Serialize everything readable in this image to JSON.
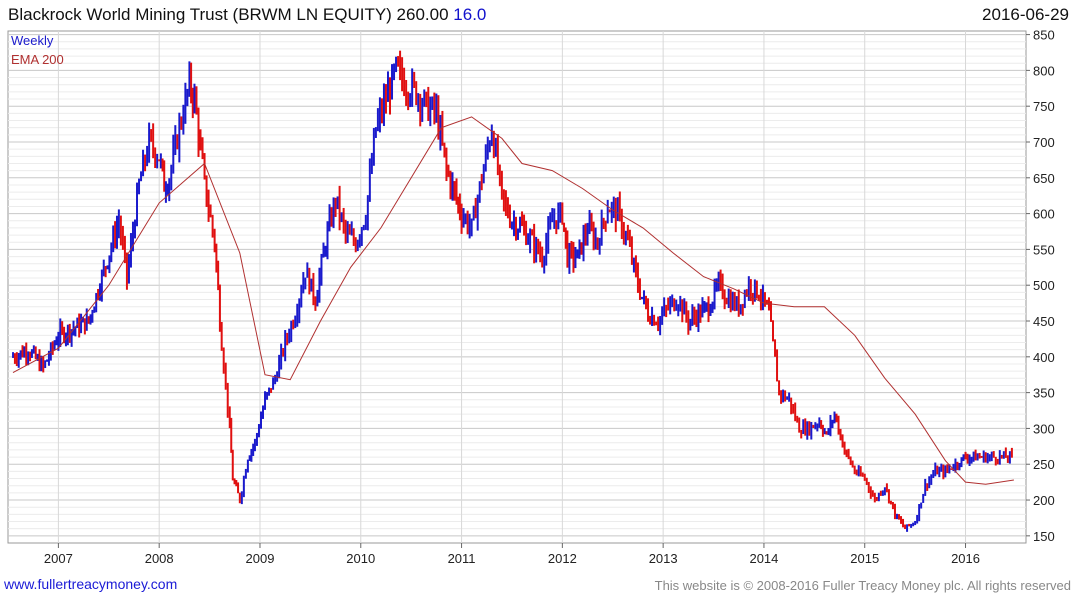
{
  "header": {
    "title": "Blackrock World Mining Trust (BRWM LN EQUITY) 260.00",
    "change": "16.0",
    "date": "2016-06-29"
  },
  "footer": {
    "site": "www.fullertreacymoney.com",
    "copyright": "This website is © 2008-2016 Fuller Treacy Money plc. All rights reserved"
  },
  "colors": {
    "up": "#1a1acc",
    "down": "#e01010",
    "ema": "#b03030",
    "grid": "#d8d8d8"
  },
  "chart_data": {
    "type": "line",
    "title": "Blackrock World Mining Trust (BRWM LN EQUITY)",
    "series": [
      {
        "name": "Weekly",
        "style": "bars-blue-red",
        "x": [
          2006.55,
          2006.7,
          2006.85,
          2007.0,
          2007.15,
          2007.3,
          2007.45,
          2007.6,
          2007.68,
          2007.8,
          2007.9,
          2008.0,
          2008.05,
          2008.1,
          2008.2,
          2008.3,
          2008.35,
          2008.45,
          2008.55,
          2008.62,
          2008.7,
          2008.73,
          2008.8,
          2008.88,
          2008.95,
          2009.05,
          2009.15,
          2009.25,
          2009.35,
          2009.45,
          2009.55,
          2009.65,
          2009.75,
          2009.85,
          2009.95,
          2010.05,
          2010.15,
          2010.25,
          2010.35,
          2010.45,
          2010.55,
          2010.65,
          2010.75,
          2010.85,
          2010.95,
          2011.0,
          2011.1,
          2011.2,
          2011.3,
          2011.4,
          2011.5,
          2011.6,
          2011.7,
          2011.8,
          2011.9,
          2012.0,
          2012.05,
          2012.15,
          2012.25,
          2012.35,
          2012.45,
          2012.55,
          2012.65,
          2012.75,
          2012.85,
          2012.95,
          2013.05,
          2013.15,
          2013.25,
          2013.35,
          2013.45,
          2013.55,
          2013.65,
          2013.75,
          2013.85,
          2013.95,
          2014.05,
          2014.15,
          2014.25,
          2014.35,
          2014.45,
          2014.55,
          2014.62,
          2014.7,
          2014.8,
          2014.9,
          2015.0,
          2015.1,
          2015.2,
          2015.3,
          2015.4,
          2015.5,
          2015.6,
          2015.7,
          2015.8,
          2015.9,
          2016.0,
          2016.1,
          2016.2,
          2016.3,
          2016.4,
          2016.48
        ],
        "values": [
          400,
          410,
          385,
          430,
          440,
          450,
          520,
          590,
          510,
          640,
          700,
          680,
          640,
          650,
          720,
          780,
          760,
          640,
          560,
          420,
          300,
          230,
          200,
          260,
          280,
          340,
          370,
          420,
          460,
          520,
          480,
          560,
          620,
          570,
          560,
          600,
          720,
          760,
          800,
          780,
          770,
          750,
          740,
          660,
          620,
          600,
          580,
          650,
          720,
          620,
          590,
          580,
          560,
          540,
          590,
          600,
          540,
          540,
          580,
          560,
          610,
          600,
          560,
          500,
          460,
          450,
          470,
          480,
          450,
          460,
          470,
          500,
          480,
          470,
          500,
          490,
          460,
          350,
          340,
          300,
          300,
          310,
          290,
          320,
          270,
          240,
          230,
          200,
          220,
          180,
          160,
          170,
          220,
          240,
          240,
          250,
          260,
          260,
          260,
          260,
          260,
          260
        ]
      },
      {
        "name": "EMA 200",
        "x": [
          2006.55,
          2007.0,
          2007.5,
          2008.0,
          2008.45,
          2008.8,
          2009.05,
          2009.3,
          2009.6,
          2009.9,
          2010.2,
          2010.5,
          2010.8,
          2011.1,
          2011.4,
          2011.6,
          2011.9,
          2012.2,
          2012.5,
          2012.8,
          2013.1,
          2013.4,
          2013.7,
          2014.0,
          2014.3,
          2014.6,
          2014.9,
          2015.2,
          2015.5,
          2015.8,
          2016.0,
          2016.2,
          2016.48
        ],
        "values": [
          378,
          412,
          500,
          615,
          670,
          545,
          375,
          368,
          450,
          525,
          580,
          650,
          720,
          735,
          705,
          670,
          660,
          635,
          605,
          580,
          545,
          512,
          495,
          475,
          470,
          470,
          430,
          370,
          320,
          255,
          225,
          222,
          228
        ]
      }
    ],
    "legend": [
      "Weekly",
      "EMA 200"
    ],
    "legend_position": "top-left",
    "xlim": [
      2006.5,
      2016.6
    ],
    "ylim": [
      140,
      855
    ],
    "x_ticks": [
      "2007",
      "2008",
      "2009",
      "2010",
      "2011",
      "2012",
      "2013",
      "2014",
      "2015",
      "2016"
    ],
    "x_tick_values": [
      2007,
      2008,
      2009,
      2010,
      2011,
      2012,
      2013,
      2014,
      2015,
      2016
    ],
    "y_ticks": [
      150,
      200,
      250,
      300,
      350,
      400,
      450,
      500,
      550,
      600,
      650,
      700,
      750,
      800,
      850
    ],
    "y_axis_side": "right",
    "grid": true
  }
}
